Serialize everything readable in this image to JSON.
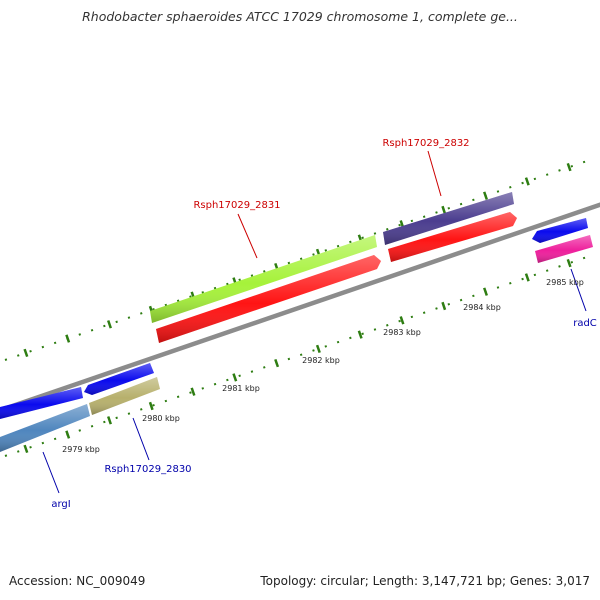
{
  "title": "Rhodobacter sphaeroides ATCC 17029 chromosome 1, complete ge...",
  "footer": {
    "accession": "Accession: NC_009049",
    "summary": "Topology: circular; Length: 3,147,721 bp; Genes: 3,017"
  },
  "scale_labels": [
    "2979 kbp",
    "2980 kbp",
    "2981 kbp",
    "2982 kbp",
    "2983 kbp",
    "2984 kbp",
    "2985 kbp"
  ],
  "gene_labels": {
    "g2831": "Rsph17029_2831",
    "g2832": "Rsph17029_2832",
    "g2830": "Rsph17029_2830",
    "argI": "argI",
    "radC": "radC"
  },
  "colors": {
    "backbone": "#888888",
    "tick": "#2e7d12",
    "label_red": "#cc0000",
    "label_blue": "#0000aa",
    "blue_gene": "#0a0aee",
    "steel_blue_gene": "#4f86be",
    "khaki_gene": "#b7b06c",
    "lime_gene": "#a6f23a",
    "red_gene": "#ff1414",
    "purple_gene": "#4b3d8f",
    "magenta_gene": "#ee1f9c"
  }
}
